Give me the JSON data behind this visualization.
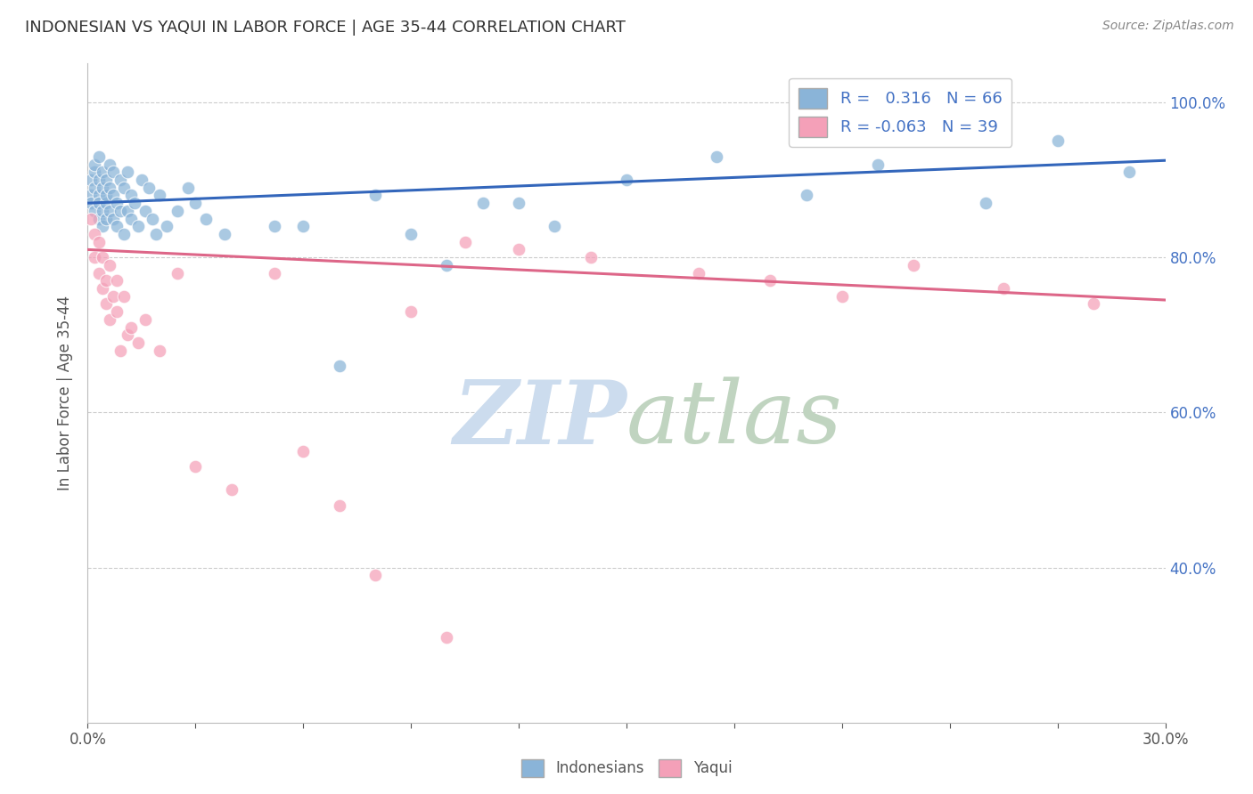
{
  "title": "INDONESIAN VS YAQUI IN LABOR FORCE | AGE 35-44 CORRELATION CHART",
  "source": "Source: ZipAtlas.com",
  "ylabel": "In Labor Force | Age 35-44",
  "xlim": [
    0.0,
    0.3
  ],
  "ylim": [
    0.2,
    1.05
  ],
  "r_indonesian": 0.316,
  "n_indonesian": 66,
  "r_yaqui": -0.063,
  "n_yaqui": 39,
  "blue_color": "#8ab4d8",
  "pink_color": "#f4a0b8",
  "blue_line_color": "#3366bb",
  "pink_line_color": "#dd6688",
  "blue_line_y0": 0.87,
  "blue_line_y1": 0.925,
  "pink_line_y0": 0.81,
  "pink_line_y1": 0.745,
  "ind_x_cluster": [
    0.001,
    0.001,
    0.001,
    0.002,
    0.002,
    0.002,
    0.002,
    0.003,
    0.003,
    0.003,
    0.003,
    0.003,
    0.004,
    0.004,
    0.004,
    0.004,
    0.005,
    0.005,
    0.005,
    0.005,
    0.006,
    0.006,
    0.006,
    0.007,
    0.007,
    0.007,
    0.008,
    0.008,
    0.009,
    0.009,
    0.01,
    0.01,
    0.011,
    0.011,
    0.012,
    0.012,
    0.013,
    0.014,
    0.015,
    0.016,
    0.017,
    0.018,
    0.019,
    0.02,
    0.022,
    0.025,
    0.028,
    0.03,
    0.033,
    0.038
  ],
  "ind_y_cluster": [
    0.88,
    0.9,
    0.87,
    0.91,
    0.86,
    0.89,
    0.92,
    0.85,
    0.88,
    0.9,
    0.87,
    0.93,
    0.86,
    0.89,
    0.91,
    0.84,
    0.87,
    0.9,
    0.88,
    0.85,
    0.89,
    0.86,
    0.92,
    0.85,
    0.88,
    0.91,
    0.84,
    0.87,
    0.86,
    0.9,
    0.83,
    0.89,
    0.86,
    0.91,
    0.85,
    0.88,
    0.87,
    0.84,
    0.9,
    0.86,
    0.89,
    0.85,
    0.83,
    0.88,
    0.84,
    0.86,
    0.89,
    0.87,
    0.85,
    0.83
  ],
  "ind_x_spread": [
    0.052,
    0.06,
    0.07,
    0.08,
    0.09,
    0.1,
    0.11,
    0.12,
    0.13,
    0.15,
    0.175,
    0.2,
    0.22,
    0.25,
    0.27,
    0.29
  ],
  "ind_y_spread": [
    0.84,
    0.84,
    0.66,
    0.88,
    0.83,
    0.79,
    0.87,
    0.87,
    0.84,
    0.9,
    0.93,
    0.88,
    0.92,
    0.87,
    0.95,
    0.91
  ],
  "yaq_x": [
    0.001,
    0.002,
    0.002,
    0.003,
    0.003,
    0.004,
    0.004,
    0.005,
    0.005,
    0.006,
    0.006,
    0.007,
    0.008,
    0.008,
    0.009,
    0.01,
    0.011,
    0.012,
    0.014,
    0.016,
    0.02,
    0.025,
    0.03,
    0.04,
    0.052,
    0.06,
    0.07,
    0.08,
    0.09,
    0.105,
    0.12,
    0.14,
    0.17,
    0.19,
    0.21,
    0.23,
    0.255,
    0.28,
    0.1
  ],
  "yaq_y": [
    0.85,
    0.83,
    0.8,
    0.78,
    0.82,
    0.76,
    0.8,
    0.74,
    0.77,
    0.72,
    0.79,
    0.75,
    0.73,
    0.77,
    0.68,
    0.75,
    0.7,
    0.71,
    0.69,
    0.72,
    0.68,
    0.78,
    0.53,
    0.5,
    0.78,
    0.55,
    0.48,
    0.39,
    0.73,
    0.82,
    0.81,
    0.8,
    0.78,
    0.77,
    0.75,
    0.79,
    0.76,
    0.74,
    0.31
  ]
}
